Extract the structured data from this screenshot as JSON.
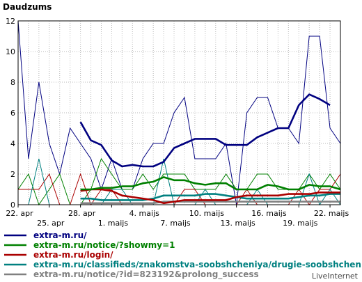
{
  "chart_data": {
    "type": "line",
    "title": "Daudzums",
    "ylim": [
      0,
      12
    ],
    "yticks": [
      0,
      2,
      4,
      6,
      8,
      10,
      12
    ],
    "x_tick_labels_row1": [
      "22. apr",
      "28. apr",
      "4. maijs",
      "10. maijs",
      "16. maijs",
      "22. maijs"
    ],
    "x_tick_labels_row2": [
      "25. apr",
      "1. maijs",
      "7. maijs",
      "13. maijs",
      "19. maijs"
    ],
    "grid": true,
    "legend_position": "bottom",
    "x": [
      0,
      1,
      2,
      3,
      4,
      5,
      6,
      7,
      8,
      9,
      10,
      11,
      12,
      13,
      14,
      15,
      16,
      17,
      18,
      19,
      20,
      21,
      22,
      23,
      24,
      25,
      26,
      27,
      28,
      29,
      30,
      31
    ],
    "series": [
      {
        "name": "extra-m.ru/",
        "color": "#000080",
        "values": [
          12,
          3,
          8,
          4,
          2,
          5,
          4,
          3,
          1,
          3,
          1,
          1,
          3,
          4,
          4,
          6,
          7,
          3,
          3,
          3,
          4,
          0,
          6,
          7,
          7,
          5,
          5,
          4,
          11,
          11,
          5,
          4
        ],
        "trend": [
          null,
          null,
          null,
          null,
          null,
          null,
          5.4,
          4.2,
          3.9,
          2.9,
          2.5,
          2.6,
          2.5,
          2.5,
          2.8,
          3.7,
          4.0,
          4.3,
          4.3,
          4.3,
          3.9,
          3.9,
          3.9,
          4.4,
          4.7,
          5.0,
          5.0,
          6.5,
          7.2,
          6.9,
          6.5,
          null
        ]
      },
      {
        "name": "extra-m.ru/notice/?showmy=1",
        "color": "#008000",
        "values": [
          1,
          2,
          0,
          1,
          2,
          0,
          0,
          1,
          3,
          2,
          1,
          1,
          2,
          1,
          2,
          2,
          2,
          1,
          1,
          1,
          2,
          1,
          1,
          2,
          2,
          1,
          1,
          1,
          2,
          1,
          2,
          1
        ],
        "trend": [
          null,
          null,
          null,
          null,
          null,
          null,
          1.0,
          1.0,
          1.1,
          1.1,
          1.2,
          1.2,
          1.4,
          1.5,
          1.8,
          1.6,
          1.6,
          1.4,
          1.3,
          1.4,
          1.4,
          1.0,
          1.0,
          1.0,
          1.3,
          1.2,
          1.0,
          1.0,
          1.3,
          1.2,
          1.2,
          1.0
        ]
      },
      {
        "name": "extra-m.ru/login/",
        "color": "#aa0000",
        "values": [
          1,
          1,
          1,
          2,
          0,
          0,
          2,
          0,
          1,
          1,
          0,
          0,
          0,
          0,
          0,
          0,
          1,
          1,
          0,
          0,
          0,
          0,
          1,
          0,
          0,
          0,
          0,
          1,
          0,
          1,
          1,
          2
        ],
        "trend": [
          null,
          null,
          null,
          null,
          null,
          null,
          0.9,
          1.0,
          1.0,
          0.9,
          0.6,
          0.5,
          0.4,
          0.3,
          0.1,
          0.2,
          0.3,
          0.3,
          0.3,
          0.3,
          0.3,
          0.5,
          0.6,
          0.6,
          0.6,
          0.6,
          0.7,
          0.7,
          0.7,
          0.8,
          0.8,
          0.8
        ]
      },
      {
        "name": "extra-m.ru/classifieds/znakomstva-soobshcheniya/drugie-soobshcheniya/l",
        "color": "#008080",
        "values": [
          0,
          0,
          3,
          0,
          0,
          0,
          0,
          0,
          0,
          1,
          1,
          0,
          0,
          0,
          3,
          0,
          0,
          0,
          1,
          0,
          0,
          0,
          0,
          1,
          0,
          0,
          0,
          0,
          2,
          0,
          1,
          0
        ],
        "trend": [
          null,
          null,
          null,
          null,
          null,
          null,
          0.4,
          0.4,
          0.3,
          0.3,
          0.3,
          0.3,
          0.3,
          0.4,
          0.6,
          0.6,
          0.6,
          0.6,
          0.7,
          0.7,
          0.6,
          0.5,
          0.4,
          0.4,
          0.4,
          0.4,
          0.4,
          0.5,
          0.6,
          0.6,
          0.7,
          0.7
        ]
      },
      {
        "name": "extra-m.ru/notice/?id=823192&prolong_success",
        "color": "#808080",
        "values": [
          0,
          0,
          0,
          0,
          0,
          0,
          0,
          0,
          0,
          0,
          0,
          0,
          0,
          0,
          0,
          0,
          0,
          0,
          0,
          0,
          0,
          0,
          0,
          0,
          0,
          0,
          0,
          0,
          0,
          0,
          0,
          0
        ],
        "trend": [
          null,
          null,
          null,
          null,
          null,
          null,
          0.1,
          0.1,
          0.1,
          0.1,
          0.1,
          0.1,
          0.1,
          0.1,
          0.2,
          0.2,
          0.2,
          0.2,
          0.2,
          0.2,
          0.2,
          0.2,
          0.2,
          0.2,
          0.2,
          0.2,
          0.2,
          0.2,
          0.2,
          0.2,
          0.2,
          0.2
        ]
      }
    ]
  },
  "credit": "LiveInternet"
}
